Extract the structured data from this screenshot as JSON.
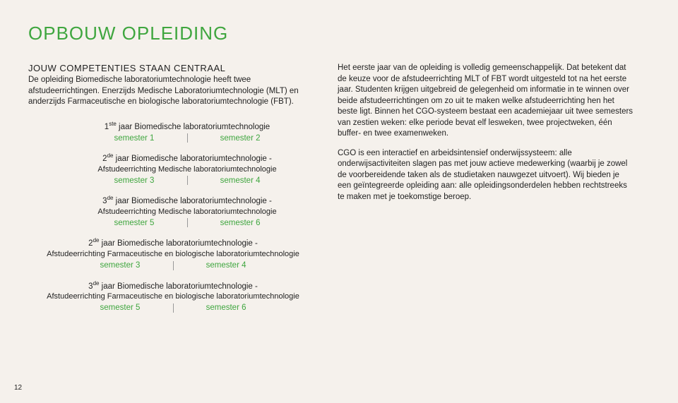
{
  "page_title": "OPBOUW OPLEIDING",
  "subtitle": "JOUW COMPETENTIES STAAN CENTRAAL",
  "intro": "De opleiding Biomedische laboratoriumtechnologie heeft twee afstudeerrichtingen. Enerzijds Medische Laboratoriumtechnologie (MLT) en anderzijds Farmaceutische en biologische laboratoriumtechnologie (FBT).",
  "years": [
    {
      "title_pre": "1",
      "title_sup": "ste",
      "title_post": " jaar Biomedische laboratoriumtechnologie",
      "sub": "",
      "sem_left": "semester 1",
      "sem_right": "semester 2"
    },
    {
      "title_pre": "2",
      "title_sup": "de",
      "title_post": " jaar Biomedische laboratoriumtechnologie -",
      "sub": "Afstudeerrichting Medische laboratoriumtechnologie",
      "sem_left": "semester 3",
      "sem_right": "semester 4"
    },
    {
      "title_pre": "3",
      "title_sup": "de",
      "title_post": " jaar Biomedische laboratoriumtechnologie -",
      "sub": "Afstudeerrichting Medische laboratoriumtechnologie",
      "sem_left": "semester 5",
      "sem_right": "semester 6"
    },
    {
      "title_pre": "2",
      "title_sup": "de",
      "title_post": " jaar Biomedische laboratoriumtechnologie -",
      "sub": "Afstudeerrichting Farmaceutische en biologische laboratoriumtechnologie",
      "sem_left": "semester 3",
      "sem_right": "semester 4"
    },
    {
      "title_pre": "3",
      "title_sup": "de",
      "title_post": " jaar Biomedische laboratoriumtechnologie -",
      "sub": "Afstudeerrichting Farmaceutische en biologische laboratoriumtechnologie",
      "sem_left": "semester 5",
      "sem_right": "semester 6"
    }
  ],
  "right_paras": [
    "Het eerste jaar van de opleiding is volledig gemeenschappelijk. Dat betekent dat de keuze voor de afstudeerrichting MLT of FBT wordt uitgesteld tot na het eerste jaar. Studenten krijgen uitgebreid de gelegenheid om informatie in te winnen over beide afstudeerrichtingen om zo uit te maken welke afstudeerrichting hen het beste ligt. Binnen het CGO-systeem bestaat een academiejaar uit twee semesters van zestien weken: elke periode bevat elf lesweken, twee projectweken, één buffer- en twee examenweken.",
    "CGO is een interactief en arbeidsintensief onderwijssysteem: alle onderwijsactiviteiten slagen pas met jouw actieve medewerking (waarbij je zowel de voorbereidende taken als de studietaken nauwgezet uitvoert). Wij bieden je een geïntegreerde opleiding aan: alle opleidingsonderdelen hebben rechtstreeks te maken met je toekomstige beroep."
  ],
  "page_number": "12",
  "colors": {
    "green": "#3fa63f",
    "bg": "#f5f1ec",
    "text": "#222222"
  }
}
